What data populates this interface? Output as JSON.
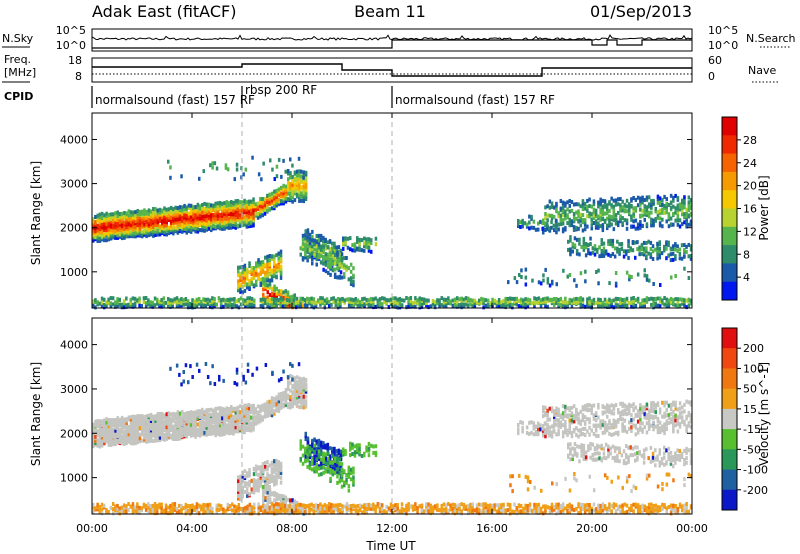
{
  "header": {
    "title": "Adak East (fitACF)",
    "beam": "Beam 11",
    "date": "01/Sep/2013"
  },
  "side_labels": {
    "nsky": "N.Sky",
    "nsearch": "N.Search",
    "freq_line1": "Freq.",
    "freq_line2": "[MHz]",
    "nave": "Nave",
    "cpid": "CPID"
  },
  "noise_axis": {
    "left_ticks": [
      "10^5",
      "10^0"
    ],
    "right_ticks": [
      "10^5",
      "10^0"
    ]
  },
  "freq_axis": {
    "left_ticks": [
      "18",
      "8"
    ],
    "right_ticks": [
      "60",
      "0"
    ]
  },
  "cpid_segments": [
    {
      "start_hour": 0,
      "label": "normalsound (fast) 157 RF"
    },
    {
      "start_hour": 6,
      "label": "rbsp 200 RF"
    },
    {
      "start_hour": 12,
      "label": "normalsound (fast) 157 RF"
    }
  ],
  "chart_data": [
    {
      "type": "heatmap",
      "ylabel": "Slant Range [km]",
      "xlim": [
        "00:00",
        "24:00"
      ],
      "ylim": [
        180,
        4600
      ],
      "x_ticks": [
        "00:00",
        "04:00",
        "08:00",
        "12:00",
        "16:00",
        "20:00",
        "00:00"
      ],
      "y_ticks": [
        1000,
        2000,
        3000,
        4000
      ],
      "colorbar": {
        "label": "Power [dB]",
        "ticks": [
          "4",
          "8",
          "12",
          "16",
          "20",
          "24",
          "28"
        ],
        "colors": [
          "#0018f0",
          "#1a5aa8",
          "#2f8c6a",
          "#56b44c",
          "#b8d230",
          "#f6c800",
          "#f59a00",
          "#f56400",
          "#ef2a00",
          "#e00000"
        ],
        "range": [
          0,
          32
        ]
      }
    },
    {
      "type": "heatmap",
      "ylabel": "Slant Range [km]",
      "xlabel": "Time UT",
      "xlim": [
        "00:00",
        "24:00"
      ],
      "ylim": [
        180,
        4600
      ],
      "x_ticks": [
        "00:00",
        "04:00",
        "08:00",
        "12:00",
        "16:00",
        "20:00",
        "00:00"
      ],
      "y_ticks": [
        1000,
        2000,
        3000,
        4000
      ],
      "colorbar": {
        "label": "Velocity [m s^-1]",
        "ticks": [
          "200",
          "100",
          "50",
          "15",
          "-15",
          "-50",
          "-100",
          "-200"
        ],
        "colors": [
          "#0a18c8",
          "#1f60a0",
          "#2a9858",
          "#58c030",
          "#c8c8c4",
          "#f0a018",
          "#f07810",
          "#f04810",
          "#e01010"
        ],
        "range": [
          -250,
          250
        ]
      }
    }
  ],
  "colors": {
    "ground_scatter": "#c4c4c0",
    "dashed_line": "#b0b0b0"
  }
}
